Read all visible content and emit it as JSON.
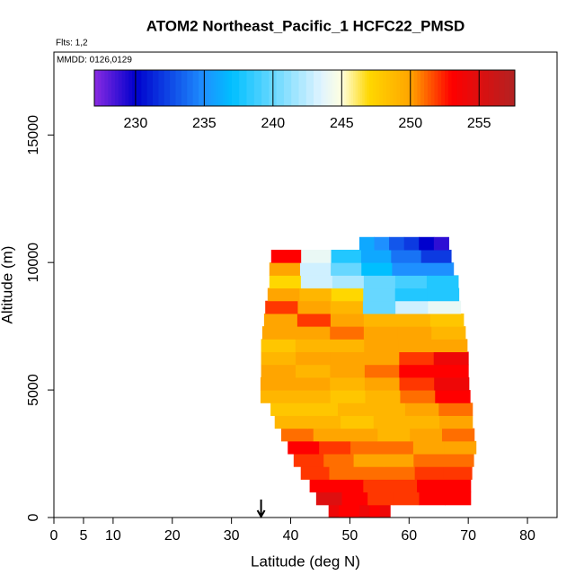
{
  "chart_data": {
    "type": "curtain",
    "title": "ATOM2 Northeast_Pacific_1 HCFC22_PMSD",
    "flights": "Flts: 1,2",
    "dates": "MMDD: 0126,0129",
    "xlabel": "Latitude (deg N)",
    "ylabel": "Altitude (m)",
    "xlim": [
      0,
      85
    ],
    "ylim": [
      0,
      18250
    ],
    "xticks": [
      0,
      5,
      10,
      20,
      30,
      40,
      50,
      60,
      70,
      80
    ],
    "yticks": [
      0,
      5000,
      10000,
      15000
    ],
    "marker_lat": 35,
    "colorbar_lim": [
      227,
      257.6
    ],
    "colorbar_ticks": [
      230,
      235,
      240,
      245,
      250,
      255
    ],
    "colorscale": {
      "values": [
        227,
        230,
        235,
        237,
        243.5,
        245,
        247,
        250,
        253,
        257.6
      ],
      "colors": [
        "#8a2be2",
        "#0000cd",
        "#1e90ff",
        "#00bfff",
        "#e0f4ff",
        "#ffffe0",
        "#ffd700",
        "#ffa500",
        "#ff0000",
        "#b22222"
      ]
    },
    "rows": [
      {
        "alt": [
          0,
          500
        ],
        "lat": [
          46.4,
          56.8
        ],
        "values": [
          254,
          253,
          253,
          254,
          253,
          254
        ]
      },
      {
        "alt": [
          500,
          1000
        ],
        "lat": [
          44.3,
          70.4
        ],
        "values": [
          255,
          253,
          252,
          252,
          253,
          253
        ]
      },
      {
        "alt": [
          1000,
          1500
        ],
        "lat": [
          43.2,
          70.4
        ],
        "values": [
          253,
          253,
          252,
          252,
          253,
          253
        ]
      },
      {
        "alt": [
          1500,
          2000
        ],
        "lat": [
          41.7,
          70.6
        ],
        "values": [
          252,
          251,
          251,
          251,
          252,
          252
        ]
      },
      {
        "alt": [
          2000,
          2500
        ],
        "lat": [
          40.5,
          70.9
        ],
        "values": [
          252,
          251,
          250,
          250,
          251,
          251
        ]
      },
      {
        "alt": [
          2500,
          3000
        ],
        "lat": [
          39.5,
          71.3
        ],
        "values": [
          253,
          252,
          251,
          251,
          250,
          250
        ]
      },
      {
        "alt": [
          3000,
          3500
        ],
        "lat": [
          38.4,
          71.0
        ],
        "values": [
          251,
          250,
          250,
          249,
          250,
          251
        ]
      },
      {
        "alt": [
          3500,
          4000
        ],
        "lat": [
          37.3,
          70.7
        ],
        "values": [
          249,
          249,
          248,
          249,
          249,
          250
        ]
      },
      {
        "alt": [
          4000,
          4500
        ],
        "lat": [
          36.6,
          70.7
        ],
        "values": [
          248,
          248,
          249,
          249,
          250,
          251
        ]
      },
      {
        "alt": [
          4500,
          5000
        ],
        "lat": [
          34.9,
          70.3
        ],
        "values": [
          249,
          249,
          248,
          249,
          251,
          253
        ]
      },
      {
        "alt": [
          5000,
          5500
        ],
        "lat": [
          34.9,
          70.1
        ],
        "values": [
          250,
          250,
          249,
          250,
          252,
          254
        ]
      },
      {
        "alt": [
          5500,
          6000
        ],
        "lat": [
          35.0,
          70.0
        ],
        "values": [
          250,
          249,
          250,
          251,
          253,
          253
        ]
      },
      {
        "alt": [
          6000,
          6500
        ],
        "lat": [
          35.0,
          70.0
        ],
        "values": [
          249,
          250,
          250,
          250,
          252,
          254
        ]
      },
      {
        "alt": [
          6500,
          7000
        ],
        "lat": [
          35.0,
          69.8
        ],
        "values": [
          248,
          249,
          249,
          250,
          250,
          250
        ]
      },
      {
        "alt": [
          7000,
          7500
        ],
        "lat": [
          35.2,
          69.5
        ],
        "values": [
          250,
          250,
          251,
          250,
          250,
          249
        ]
      },
      {
        "alt": [
          7500,
          8000
        ],
        "lat": [
          35.5,
          69.2
        ],
        "values": [
          250,
          252,
          250,
          249,
          249,
          248
        ]
      },
      {
        "alt": [
          8000,
          8500
        ],
        "lat": [
          35.7,
          68.7
        ],
        "values": [
          252,
          250,
          249,
          240,
          243,
          244
        ]
      },
      {
        "alt": [
          8500,
          9000
        ],
        "lat": [
          36.1,
          68.4
        ],
        "values": [
          250,
          249,
          247,
          240,
          238,
          238
        ]
      },
      {
        "alt": [
          9000,
          9500
        ],
        "lat": [
          36.4,
          68.3
        ],
        "values": [
          247,
          243,
          242,
          240,
          239,
          238
        ]
      },
      {
        "alt": [
          9500,
          10000
        ],
        "lat": [
          36.4,
          67.5
        ],
        "values": [
          250,
          243,
          240,
          237,
          235,
          235
        ]
      },
      {
        "alt": [
          10000,
          10500
        ],
        "lat": [
          36.7,
          67.1
        ],
        "values": [
          253,
          244,
          238,
          236,
          234,
          232
        ]
      },
      {
        "alt": [
          10500,
          11000
        ],
        "lat": [
          51.6,
          66.7
        ],
        "values": [
          236,
          235,
          233,
          232,
          230,
          229
        ]
      }
    ]
  }
}
